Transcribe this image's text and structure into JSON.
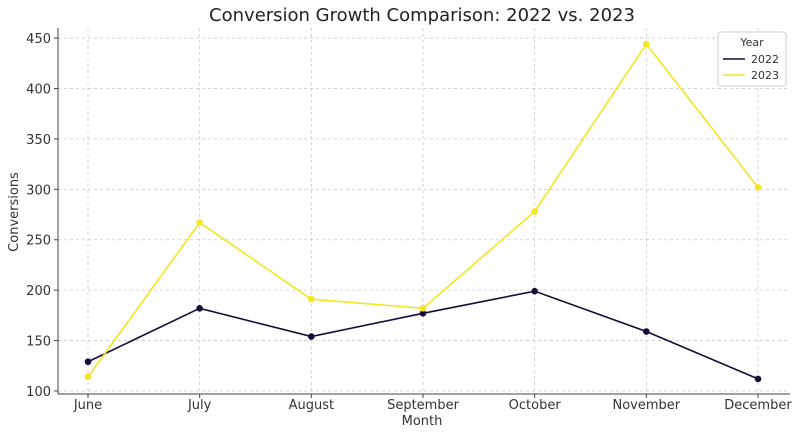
{
  "chart_data": {
    "type": "line",
    "title": "Conversion Growth Comparison: 2022 vs. 2023",
    "xlabel": "Month",
    "ylabel": "Conversions",
    "categories": [
      "June",
      "July",
      "August",
      "September",
      "October",
      "November",
      "December"
    ],
    "yticks": [
      100,
      150,
      200,
      250,
      300,
      350,
      400,
      450
    ],
    "ylim": [
      97,
      460
    ],
    "grid": true,
    "legend": {
      "title": "Year",
      "position": "top-right"
    },
    "series": [
      {
        "name": "2022",
        "color": "#1a0a3c",
        "values": [
          129,
          182,
          154,
          177,
          199,
          159,
          112
        ]
      },
      {
        "name": "2023",
        "color": "#f5e421",
        "values": [
          114,
          267,
          191,
          182,
          278,
          444,
          302
        ]
      }
    ]
  }
}
